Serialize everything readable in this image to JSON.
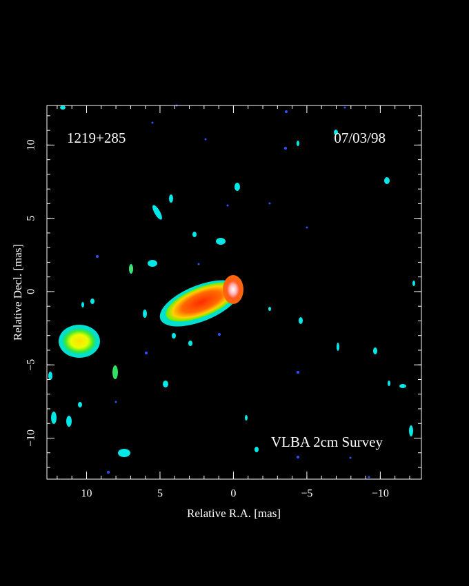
{
  "chart_data": {
    "type": "image",
    "annotations": [
      "1219+285",
      "07/03/98",
      "VLBA 2cm Survey"
    ],
    "x_label": "Relative R.A. [mas]",
    "y_label": "Relative Decl. [mas]",
    "xlim": [
      12.7,
      -12.8
    ],
    "ylim": [
      -12.8,
      12.7
    ],
    "xticks": [
      10,
      5,
      0,
      {
        "value": -5,
        "label": "−5"
      },
      {
        "value": -10,
        "label": "−10"
      }
    ],
    "yticks": [
      {
        "value": -10,
        "label": "−10"
      },
      {
        "value": -5,
        "label": "−5"
      },
      0,
      5,
      10
    ]
  }
}
